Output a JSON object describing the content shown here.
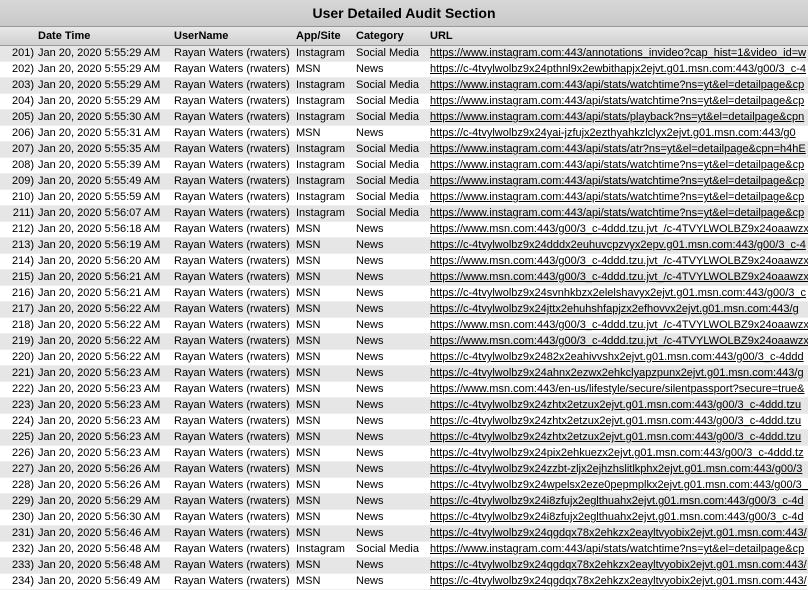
{
  "title": "User Detailed Audit Section",
  "columns": {
    "dt": "Date Time",
    "user": "UserName",
    "app": "App/Site",
    "cat": "Category",
    "url": "URL"
  },
  "styles": {
    "row_even_bg": "#ffffff",
    "row_odd_bg": "#e6e6e6",
    "header_bg_top": "#d8d8d8",
    "header_bg_bottom": "#c8c8c8",
    "col_header_bg_top": "#e8e8e8",
    "col_header_bg_bottom": "#d0d0d0",
    "border_color": "#999999",
    "title_fontsize": 14,
    "body_fontsize": 11
  },
  "rows": [
    {
      "idx": "201)",
      "dt": "Jan 20, 2020 5:55:29 AM",
      "user": "Rayan Waters (rwaters)",
      "app": "Instagram",
      "cat": "Social Media",
      "url": "https://www.instagram.com:443/annotations_invideo?cap_hist=1&video_id=w"
    },
    {
      "idx": "202)",
      "dt": "Jan 20, 2020 5:55:29 AM",
      "user": "Rayan Waters (rwaters)",
      "app": "MSN",
      "cat": "News",
      "url": "https://c-4tvylwolbz9x24pthnl9x2ewbithapjx2ejvt.g01.msn.com:443/g00/3_c-4"
    },
    {
      "idx": "203)",
      "dt": "Jan 20, 2020 5:55:29 AM",
      "user": "Rayan Waters (rwaters)",
      "app": "Instagram",
      "cat": "Social Media",
      "url": "https://www.instagram.com:443/api/stats/watchtime?ns=yt&el=detailpage&cp"
    },
    {
      "idx": "204)",
      "dt": "Jan 20, 2020 5:55:29 AM",
      "user": "Rayan Waters (rwaters)",
      "app": "Instagram",
      "cat": "Social Media",
      "url": "https://www.instagram.com:443/api/stats/watchtime?ns=yt&el=detailpage&cp"
    },
    {
      "idx": "205)",
      "dt": "Jan 20, 2020 5:55:30 AM",
      "user": "Rayan Waters (rwaters)",
      "app": "Instagram",
      "cat": "Social Media",
      "url": "https://www.instagram.com:443/api/stats/playback?ns=yt&el=detailpage&cpn"
    },
    {
      "idx": "206)",
      "dt": "Jan 20, 2020 5:55:31 AM",
      "user": "Rayan Waters (rwaters)",
      "app": "MSN",
      "cat": "News",
      "url": "https://c-4tvylwolbz9x24yai-jzfujx2ezthyahkzlclyx2ejvt.g01.msn.com:443/g0"
    },
    {
      "idx": "207)",
      "dt": "Jan 20, 2020 5:55:35 AM",
      "user": "Rayan Waters (rwaters)",
      "app": "Instagram",
      "cat": "Social Media",
      "url": "https://www.instagram.com:443/api/stats/atr?ns=yt&el=detailpage&cpn=h4hE"
    },
    {
      "idx": "208)",
      "dt": "Jan 20, 2020 5:55:39 AM",
      "user": "Rayan Waters (rwaters)",
      "app": "Instagram",
      "cat": "Social Media",
      "url": "https://www.instagram.com:443/api/stats/watchtime?ns=yt&el=detailpage&cp"
    },
    {
      "idx": "209)",
      "dt": "Jan 20, 2020 5:55:49 AM",
      "user": "Rayan Waters (rwaters)",
      "app": "Instagram",
      "cat": "Social Media",
      "url": "https://www.instagram.com:443/api/stats/watchtime?ns=yt&el=detailpage&cp"
    },
    {
      "idx": "210)",
      "dt": "Jan 20, 2020 5:55:59 AM",
      "user": "Rayan Waters (rwaters)",
      "app": "Instagram",
      "cat": "Social Media",
      "url": "https://www.instagram.com:443/api/stats/watchtime?ns=yt&el=detailpage&cp"
    },
    {
      "idx": "211)",
      "dt": "Jan 20, 2020 5:56:07 AM",
      "user": "Rayan Waters (rwaters)",
      "app": "Instagram",
      "cat": "Social Media",
      "url": "https://www.instagram.com:443/api/stats/watchtime?ns=yt&el=detailpage&cp"
    },
    {
      "idx": "212)",
      "dt": "Jan 20, 2020 5:56:18 AM",
      "user": "Rayan Waters (rwaters)",
      "app": "MSN",
      "cat": "News",
      "url": "https://www.msn.com:443/g00/3_c-4ddd.tzu.jvt_/c-4TVYLWOLBZ9x24oaawzx"
    },
    {
      "idx": "213)",
      "dt": "Jan 20, 2020 5:56:19 AM",
      "user": "Rayan Waters (rwaters)",
      "app": "MSN",
      "cat": "News",
      "url": "https://c-4tvylwolbz9x24dddx2euhuvcpzvyx2epv.g01.msn.com:443/g00/3_c-4"
    },
    {
      "idx": "214)",
      "dt": "Jan 20, 2020 5:56:20 AM",
      "user": "Rayan Waters (rwaters)",
      "app": "MSN",
      "cat": "News",
      "url": "https://www.msn.com:443/g00/3_c-4ddd.tzu.jvt_/c-4TVYLWOLBZ9x24oaawzx"
    },
    {
      "idx": "215)",
      "dt": "Jan 20, 2020 5:56:21 AM",
      "user": "Rayan Waters (rwaters)",
      "app": "MSN",
      "cat": "News",
      "url": "https://www.msn.com:443/g00/3_c-4ddd.tzu.jvt_/c-4TVYLWOLBZ9x24oaawzx"
    },
    {
      "idx": "216)",
      "dt": "Jan 20, 2020 5:56:21 AM",
      "user": "Rayan Waters (rwaters)",
      "app": "MSN",
      "cat": "News",
      "url": "https://c-4tvylwolbz9x24svnhkbzx2elelshavyx2ejvt.g01.msn.com:443/g00/3_c"
    },
    {
      "idx": "217)",
      "dt": "Jan 20, 2020 5:56:22 AM",
      "user": "Rayan Waters (rwaters)",
      "app": "MSN",
      "cat": "News",
      "url": "https://c-4tvylwolbz9x24jttx2ehuhshfapjzx2efhovvx2ejvt.g01.msn.com:443/g"
    },
    {
      "idx": "218)",
      "dt": "Jan 20, 2020 5:56:22 AM",
      "user": "Rayan Waters (rwaters)",
      "app": "MSN",
      "cat": "News",
      "url": "https://www.msn.com:443/g00/3_c-4ddd.tzu.jvt_/c-4TVYLWOLBZ9x24oaawzx"
    },
    {
      "idx": "219)",
      "dt": "Jan 20, 2020 5:56:22 AM",
      "user": "Rayan Waters (rwaters)",
      "app": "MSN",
      "cat": "News",
      "url": "https://www.msn.com:443/g00/3_c-4ddd.tzu.jvt_/c-4TVYLWOLBZ9x24oaawzx"
    },
    {
      "idx": "220)",
      "dt": "Jan 20, 2020 5:56:22 AM",
      "user": "Rayan Waters (rwaters)",
      "app": "MSN",
      "cat": "News",
      "url": "https://c-4tvylwolbz9x2482x2eahivvshx2ejvt.g01.msn.com:443/g00/3_c-4ddd"
    },
    {
      "idx": "221)",
      "dt": "Jan 20, 2020 5:56:23 AM",
      "user": "Rayan Waters (rwaters)",
      "app": "MSN",
      "cat": "News",
      "url": "https://c-4tvylwolbz9x24ahnx2ezwx2ehkclyapzpunx2ejvt.g01.msn.com:443/g"
    },
    {
      "idx": "222)",
      "dt": "Jan 20, 2020 5:56:23 AM",
      "user": "Rayan Waters (rwaters)",
      "app": "MSN",
      "cat": "News",
      "url": "https://www.msn.com:443/en-us/lifestyle/secure/silentpassport?secure=true&"
    },
    {
      "idx": "223)",
      "dt": "Jan 20, 2020 5:56:23 AM",
      "user": "Rayan Waters (rwaters)",
      "app": "MSN",
      "cat": "News",
      "url": "https://c-4tvylwolbz9x24zhtx2etzux2ejvt.g01.msn.com:443/g00/3_c-4ddd.tzu"
    },
    {
      "idx": "224)",
      "dt": "Jan 20, 2020 5:56:23 AM",
      "user": "Rayan Waters (rwaters)",
      "app": "MSN",
      "cat": "News",
      "url": "https://c-4tvylwolbz9x24zhtx2etzux2ejvt.g01.msn.com:443/g00/3_c-4ddd.tzu"
    },
    {
      "idx": "225)",
      "dt": "Jan 20, 2020 5:56:23 AM",
      "user": "Rayan Waters (rwaters)",
      "app": "MSN",
      "cat": "News",
      "url": "https://c-4tvylwolbz9x24zhtx2etzux2ejvt.g01.msn.com:443/g00/3_c-4ddd.tzu"
    },
    {
      "idx": "226)",
      "dt": "Jan 20, 2020 5:56:23 AM",
      "user": "Rayan Waters (rwaters)",
      "app": "MSN",
      "cat": "News",
      "url": "https://c-4tvylwolbz9x24pix2ehkuezx2ejvt.g01.msn.com:443/g00/3_c-4ddd.tz"
    },
    {
      "idx": "227)",
      "dt": "Jan 20, 2020 5:56:26 AM",
      "user": "Rayan Waters (rwaters)",
      "app": "MSN",
      "cat": "News",
      "url": "https://c-4tvylwolbz9x24zzbt-zljx2ejhzhslitlkphx2ejvt.g01.msn.com:443/g00/3"
    },
    {
      "idx": "228)",
      "dt": "Jan 20, 2020 5:56:26 AM",
      "user": "Rayan Waters (rwaters)",
      "app": "MSN",
      "cat": "News",
      "url": "https://c-4tvylwolbz9x24wpelsx2eze0pepmplkx2ejvt.g01.msn.com:443/g00/3_c"
    },
    {
      "idx": "229)",
      "dt": "Jan 20, 2020 5:56:29 AM",
      "user": "Rayan Waters (rwaters)",
      "app": "MSN",
      "cat": "News",
      "url": "https://c-4tvylwolbz9x24i8zfujx2eglthuahx2ejvt.g01.msn.com:443/g00/3_c-4d"
    },
    {
      "idx": "230)",
      "dt": "Jan 20, 2020 5:56:30 AM",
      "user": "Rayan Waters (rwaters)",
      "app": "MSN",
      "cat": "News",
      "url": "https://c-4tvylwolbz9x24i8zfujx2eglthuahx2ejvt.g01.msn.com:443/g00/3_c-4d"
    },
    {
      "idx": "231)",
      "dt": "Jan 20, 2020 5:56:46 AM",
      "user": "Rayan Waters (rwaters)",
      "app": "MSN",
      "cat": "News",
      "url": "https://c-4tvylwolbz9x24qgdqx78x2ehkzx2eayltvyobix2ejvt.g01.msn.com:443/"
    },
    {
      "idx": "232)",
      "dt": "Jan 20, 2020 5:56:48 AM",
      "user": "Rayan Waters (rwaters)",
      "app": "Instagram",
      "cat": "Social Media",
      "url": "https://www.instagram.com:443/api/stats/watchtime?ns=yt&el=detailpage&cp"
    },
    {
      "idx": "233)",
      "dt": "Jan 20, 2020 5:56:48 AM",
      "user": "Rayan Waters (rwaters)",
      "app": "MSN",
      "cat": "News",
      "url": "https://c-4tvylwolbz9x24qgdqx78x2ehkzx2eayltvyobix2ejvt.g01.msn.com:443/"
    },
    {
      "idx": "234)",
      "dt": "Jan 20, 2020 5:56:49 AM",
      "user": "Rayan Waters (rwaters)",
      "app": "MSN",
      "cat": "News",
      "url": "https://c-4tvylwolbz9x24qgdqx78x2ehkzx2eayltvyobix2ejvt.g01.msn.com:443/"
    }
  ]
}
